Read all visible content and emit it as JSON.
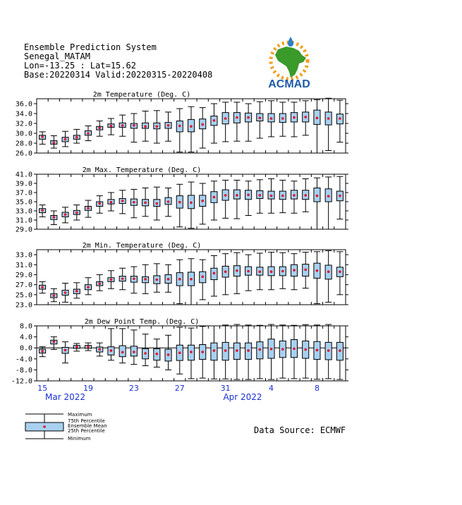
{
  "header": {
    "line1": "Ensemble Prediction System",
    "line2": "Senegal_MATAM",
    "line3": "Lon=-13.25 : Lat=15.62",
    "line4": "Base:20220314 Valid:20220315-20220408"
  },
  "logo": {
    "text": "ACMAD",
    "icon": "africa-map-icon",
    "colors": {
      "africa": "#3a9a2a",
      "sun": "#f0a020",
      "drop": "#2a7fd0",
      "text": "#1e5aa8"
    }
  },
  "source": "Data Source: ECMWF",
  "colors": {
    "box": "#a8d0f0",
    "mean": "#e0102a",
    "axis_text": "#1a2fd0"
  },
  "xaxis": {
    "ticks": [
      {
        "day": 0,
        "label": "15"
      },
      {
        "day": 4,
        "label": "19"
      },
      {
        "day": 8,
        "label": "23"
      },
      {
        "day": 12,
        "label": "27"
      },
      {
        "day": 16,
        "label": "31"
      },
      {
        "day": 20,
        "label": "4"
      },
      {
        "day": 24,
        "label": "8"
      }
    ],
    "months": [
      {
        "day": 2,
        "label": "Mar 2022"
      },
      {
        "day": 17.5,
        "label": "Apr 2022"
      }
    ]
  },
  "legend": {
    "max": "Maximum",
    "p75": "75th Percentile",
    "mean": "Ensemble Mean",
    "p25": "25th Percentile",
    "min": "Minimum"
  },
  "chart_data": [
    {
      "type": "boxplot",
      "title": "2m Temperature (Deg. C)",
      "ylim": [
        26,
        37
      ],
      "yticks": [
        "26.0",
        "28.0",
        "30.0",
        "32.0",
        "34.0",
        "36.0"
      ],
      "grid": false,
      "series": [
        [
          27.8,
          28.8,
          29.3,
          29.6,
          30.3
        ],
        [
          27.0,
          27.8,
          28.1,
          28.5,
          29.5
        ],
        [
          27.3,
          28.3,
          28.8,
          29.2,
          30.4
        ],
        [
          28.0,
          28.8,
          29.2,
          29.6,
          30.8
        ],
        [
          28.5,
          29.6,
          30.0,
          30.5,
          31.5
        ],
        [
          29.4,
          30.7,
          31.1,
          31.4,
          32.5
        ],
        [
          29.7,
          31.2,
          31.5,
          31.9,
          33.0
        ],
        [
          29.4,
          31.2,
          31.6,
          32.1,
          33.7
        ],
        [
          28.2,
          31.0,
          31.6,
          32.0,
          34.0
        ],
        [
          28.4,
          31.0,
          31.4,
          32.1,
          34.5
        ],
        [
          28.0,
          30.9,
          31.4,
          32.1,
          34.6
        ],
        [
          28.4,
          31.0,
          31.6,
          32.2,
          34.3
        ],
        [
          26.2,
          30.3,
          31.5,
          32.5,
          35.0
        ],
        [
          26.2,
          30.3,
          31.4,
          32.8,
          35.4
        ],
        [
          27.0,
          30.9,
          31.8,
          32.9,
          35.2
        ],
        [
          28.0,
          31.6,
          32.6,
          33.5,
          36.0
        ],
        [
          28.3,
          31.9,
          33.0,
          34.2,
          36.3
        ],
        [
          28.4,
          32.1,
          33.2,
          34.2,
          36.3
        ],
        [
          28.4,
          32.3,
          33.2,
          34.1,
          36.0
        ],
        [
          29.0,
          32.5,
          33.1,
          34.0,
          36.4
        ],
        [
          29.3,
          32.3,
          33.0,
          34.0,
          36.6
        ],
        [
          29.4,
          32.2,
          33.0,
          34.0,
          36.3
        ],
        [
          29.3,
          32.3,
          33.2,
          34.2,
          36.3
        ],
        [
          29.6,
          32.3,
          33.3,
          34.3,
          36.6
        ],
        [
          26.0,
          31.8,
          33.1,
          34.7,
          36.8
        ],
        [
          26.5,
          31.7,
          33.0,
          34.3,
          37.1
        ],
        [
          28.2,
          31.9,
          33.0,
          33.9,
          36.7
        ]
      ]
    },
    {
      "type": "boxplot",
      "title": "2m Max. Temperature (Deg. C)",
      "ylim": [
        29,
        41
      ],
      "yticks": [
        "29.0",
        "31.0",
        "33.0",
        "35.0",
        "37.0",
        "39.0",
        "41.0"
      ],
      "grid": false,
      "series": [
        [
          31.7,
          32.6,
          33.1,
          33.5,
          34.3
        ],
        [
          30.0,
          31.1,
          31.6,
          32.0,
          33.0
        ],
        [
          30.4,
          31.7,
          32.2,
          32.7,
          33.8
        ],
        [
          31.0,
          32.2,
          32.6,
          33.1,
          34.3
        ],
        [
          31.6,
          33.1,
          33.6,
          34.0,
          35.3
        ],
        [
          32.5,
          34.0,
          34.6,
          35.0,
          36.3
        ],
        [
          33.0,
          34.5,
          34.9,
          35.5,
          37.0
        ],
        [
          32.4,
          34.6,
          35.2,
          35.7,
          37.5
        ],
        [
          31.5,
          34.2,
          34.9,
          35.6,
          37.7
        ],
        [
          31.8,
          34.1,
          34.8,
          35.5,
          38.0
        ],
        [
          31.0,
          34.0,
          34.6,
          35.5,
          38.2
        ],
        [
          31.8,
          34.4,
          35.0,
          35.9,
          38.0
        ],
        [
          29.5,
          33.6,
          34.9,
          36.3,
          38.8
        ],
        [
          29.2,
          33.5,
          34.8,
          36.4,
          39.3
        ],
        [
          30.1,
          34.0,
          35.2,
          36.4,
          39.0
        ],
        [
          31.0,
          34.8,
          36.0,
          37.2,
          39.5
        ],
        [
          31.4,
          35.3,
          36.4,
          37.6,
          39.7
        ],
        [
          31.3,
          35.6,
          36.4,
          37.6,
          39.7
        ],
        [
          32.0,
          35.5,
          36.5,
          37.5,
          39.5
        ],
        [
          32.5,
          35.7,
          36.4,
          37.4,
          39.8
        ],
        [
          32.5,
          35.6,
          36.3,
          37.3,
          40.0
        ],
        [
          32.6,
          35.5,
          36.3,
          37.3,
          39.7
        ],
        [
          32.5,
          35.6,
          36.4,
          37.5,
          39.5
        ],
        [
          32.8,
          35.5,
          36.4,
          37.5,
          40.0
        ],
        [
          29.0,
          35.0,
          36.3,
          38.0,
          40.2
        ],
        [
          29.0,
          35.0,
          36.2,
          37.8,
          40.4
        ],
        [
          31.2,
          35.2,
          36.3,
          37.3,
          40.5
        ]
      ]
    },
    {
      "type": "boxplot",
      "title": "2m Min. Temperature (Deg. C)",
      "ylim": [
        23,
        34
      ],
      "yticks": [
        "23.0",
        "25.0",
        "27.0",
        "29.0",
        "31.0",
        "33.0"
      ],
      "grid": false,
      "series": [
        [
          25.3,
          26.1,
          26.5,
          26.9,
          27.6
        ],
        [
          23.6,
          24.4,
          24.8,
          25.2,
          26.2
        ],
        [
          23.5,
          24.9,
          25.4,
          25.9,
          27.3
        ],
        [
          24.3,
          25.2,
          25.7,
          26.1,
          27.4
        ],
        [
          25.0,
          26.0,
          26.5,
          27.0,
          28.4
        ],
        [
          25.8,
          26.8,
          27.2,
          27.6,
          29.0
        ],
        [
          26.2,
          27.6,
          28.0,
          28.4,
          29.8
        ],
        [
          26.0,
          27.7,
          28.2,
          28.7,
          30.3
        ],
        [
          25.3,
          27.5,
          28.2,
          28.7,
          30.6
        ],
        [
          25.2,
          27.4,
          28.1,
          28.6,
          31.0
        ],
        [
          25.5,
          27.2,
          28.0,
          28.8,
          31.2
        ],
        [
          25.5,
          27.3,
          28.1,
          29.0,
          31.0
        ],
        [
          23.2,
          26.8,
          28.1,
          29.4,
          32.0
        ],
        [
          23.0,
          26.8,
          28.1,
          29.5,
          32.2
        ],
        [
          24.0,
          27.4,
          28.6,
          29.6,
          32.0
        ],
        [
          24.7,
          28.0,
          29.3,
          30.3,
          32.8
        ],
        [
          25.0,
          28.5,
          29.6,
          30.7,
          33.2
        ],
        [
          25.2,
          28.7,
          29.8,
          30.8,
          33.4
        ],
        [
          25.8,
          28.9,
          29.7,
          30.6,
          33.0
        ],
        [
          26.0,
          28.9,
          29.6,
          30.5,
          33.3
        ],
        [
          26.0,
          28.8,
          29.6,
          30.6,
          33.5
        ],
        [
          26.2,
          28.8,
          29.7,
          30.6,
          33.4
        ],
        [
          26.0,
          28.7,
          29.9,
          31.0,
          33.2
        ],
        [
          26.3,
          28.7,
          30.0,
          31.1,
          33.5
        ],
        [
          23.2,
          28.3,
          29.8,
          31.3,
          33.6
        ],
        [
          23.5,
          28.1,
          29.6,
          30.9,
          33.8
        ],
        [
          25.0,
          28.6,
          29.6,
          30.5,
          33.6
        ]
      ]
    },
    {
      "type": "boxplot",
      "title": "2m Dew Point Temp. (Deg. C)",
      "ylim": [
        -12,
        8
      ],
      "yticks": [
        "-12.0",
        "-8.0",
        "-4.0",
        "0.0",
        "4.0",
        "8.0"
      ],
      "hline": 0,
      "grid": false,
      "series": [
        [
          -3.2,
          -1.9,
          -1.2,
          -0.5,
          0.4
        ],
        [
          -0.6,
          1.4,
          2.2,
          2.8,
          4.0
        ],
        [
          -5.5,
          -2.0,
          -0.8,
          0.2,
          2.2
        ],
        [
          -1.2,
          -0.2,
          0.4,
          0.9,
          1.6
        ],
        [
          -1.0,
          -0.2,
          0.4,
          0.9,
          1.8
        ],
        [
          -3.0,
          -1.5,
          -0.5,
          0.3,
          1.8
        ],
        [
          -4.5,
          -2.6,
          -1.0,
          0.4,
          7.0
        ],
        [
          -5.5,
          -3.2,
          -1.6,
          0.8,
          7.0
        ],
        [
          -6.0,
          -3.0,
          -1.5,
          0.6,
          6.5
        ],
        [
          -6.5,
          -4.0,
          -2.0,
          -0.3,
          5.0
        ],
        [
          -7.0,
          -4.5,
          -2.2,
          -0.3,
          3.2
        ],
        [
          -8.0,
          -4.8,
          -2.5,
          -0.5,
          4.6
        ],
        [
          -9.5,
          -4.6,
          -1.8,
          1.0,
          7.5
        ],
        [
          -11.2,
          -4.5,
          -1.5,
          1.0,
          7.2
        ],
        [
          -11.0,
          -4.2,
          -1.5,
          1.2,
          7.8
        ],
        [
          -11.3,
          -4.5,
          -1.0,
          1.8,
          8.0
        ],
        [
          -11.3,
          -4.5,
          -1.0,
          2.0,
          8.3
        ],
        [
          -11.5,
          -4.2,
          -1.0,
          1.8,
          8.5
        ],
        [
          -11.5,
          -4.2,
          -1.0,
          1.8,
          8.3
        ],
        [
          -11.2,
          -4.0,
          -0.6,
          2.2,
          8.2
        ],
        [
          -11.5,
          -3.8,
          -0.4,
          3.2,
          8.5
        ],
        [
          -11.0,
          -3.5,
          -0.5,
          2.5,
          8.3
        ],
        [
          -11.2,
          -3.5,
          -0.3,
          3.0,
          8.2
        ],
        [
          -11.0,
          -3.8,
          -0.6,
          2.5,
          8.4
        ],
        [
          -11.4,
          -4.2,
          -0.8,
          2.3,
          8.3
        ],
        [
          -11.2,
          -4.3,
          -1.0,
          2.0,
          8.5
        ],
        [
          -11.5,
          -4.5,
          -1.0,
          2.0,
          8.0
        ]
      ]
    }
  ]
}
